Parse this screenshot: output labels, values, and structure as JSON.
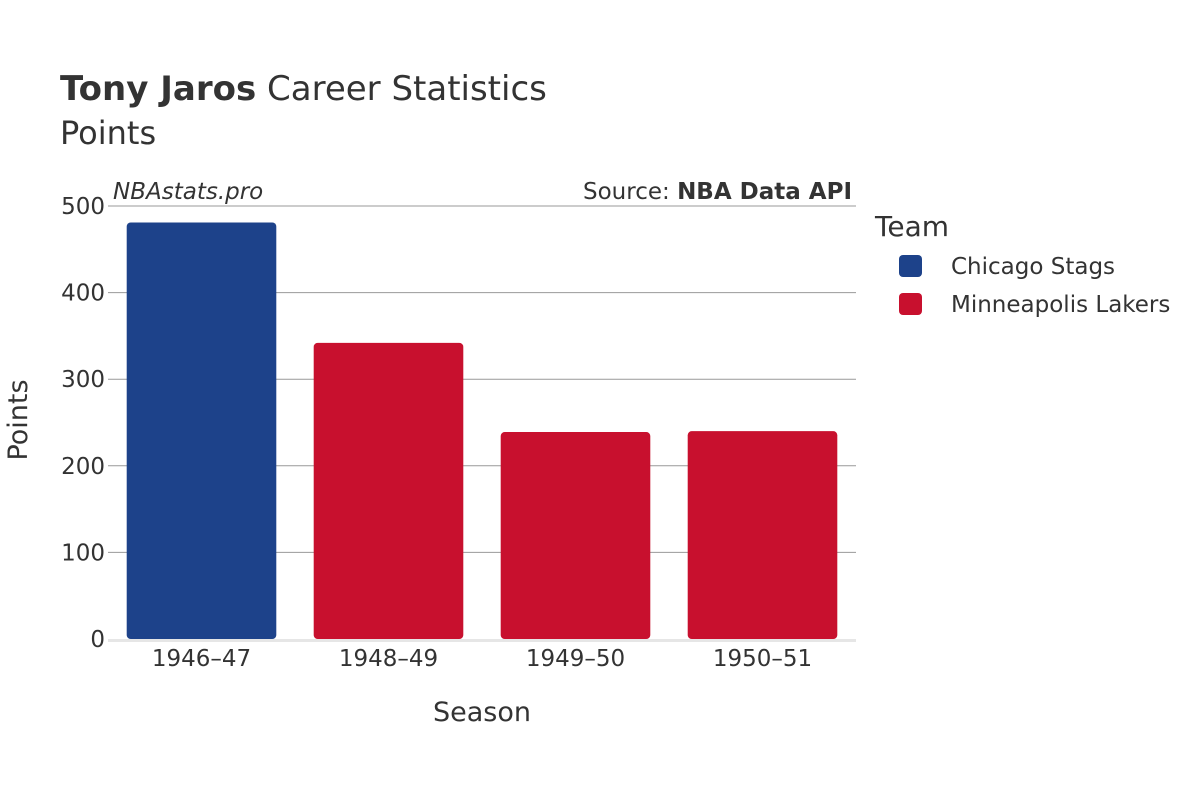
{
  "header": {
    "title_name": "Tony Jaros",
    "title_rest": " Career Statistics",
    "subtitle": "Points"
  },
  "watermark": "NBAstats.pro",
  "source": {
    "prefix": "Source: ",
    "name": "NBA Data API"
  },
  "legend": {
    "title": "Team",
    "items": [
      {
        "label": "Chicago Stags",
        "color": "#1d428a"
      },
      {
        "label": "Minneapolis Lakers",
        "color": "#c8102e"
      }
    ]
  },
  "chart_data": {
    "type": "bar",
    "title": "Tony Jaros Career Statistics",
    "subtitle": "Points",
    "xlabel": "Season",
    "ylabel": "Points",
    "categories": [
      "1946–47",
      "1948–49",
      "1949–50",
      "1950–51"
    ],
    "values": [
      481,
      342,
      239,
      240
    ],
    "teams": [
      "Chicago Stags",
      "Minneapolis Lakers",
      "Minneapolis Lakers",
      "Minneapolis Lakers"
    ],
    "ylim": [
      0,
      500
    ],
    "yticks": [
      0,
      100,
      200,
      300,
      400,
      500
    ],
    "grid": true,
    "legend_position": "right"
  }
}
